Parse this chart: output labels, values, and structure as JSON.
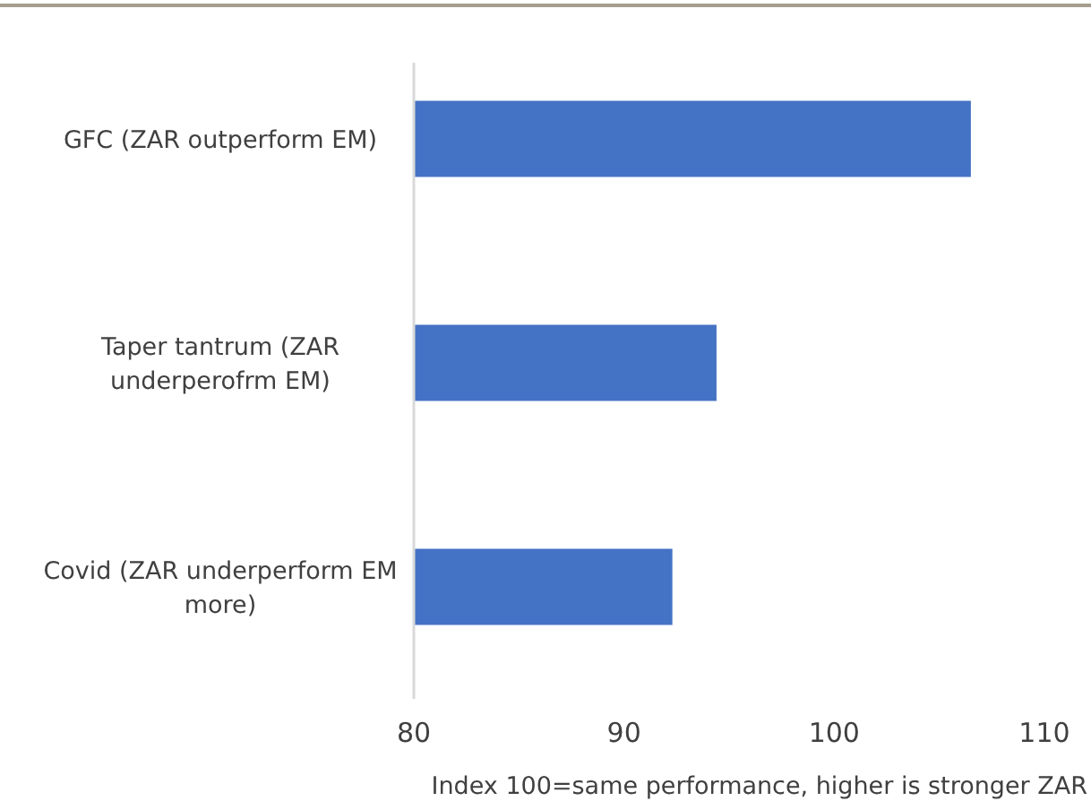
{
  "chart_data": {
    "type": "bar",
    "orientation": "horizontal",
    "categories": [
      "GFC (ZAR outperform EM)",
      "Taper tantrum (ZAR underperofrm EM)",
      "Covid (ZAR underperform EM more)"
    ],
    "values": [
      106.5,
      94.4,
      92.3
    ],
    "color": "#4472c4",
    "xlim": [
      80,
      110
    ],
    "xticks": [
      80,
      90,
      100,
      110
    ],
    "xlabel": "Index 100=same performance, higher is stronger ZAR",
    "grid": false
  }
}
